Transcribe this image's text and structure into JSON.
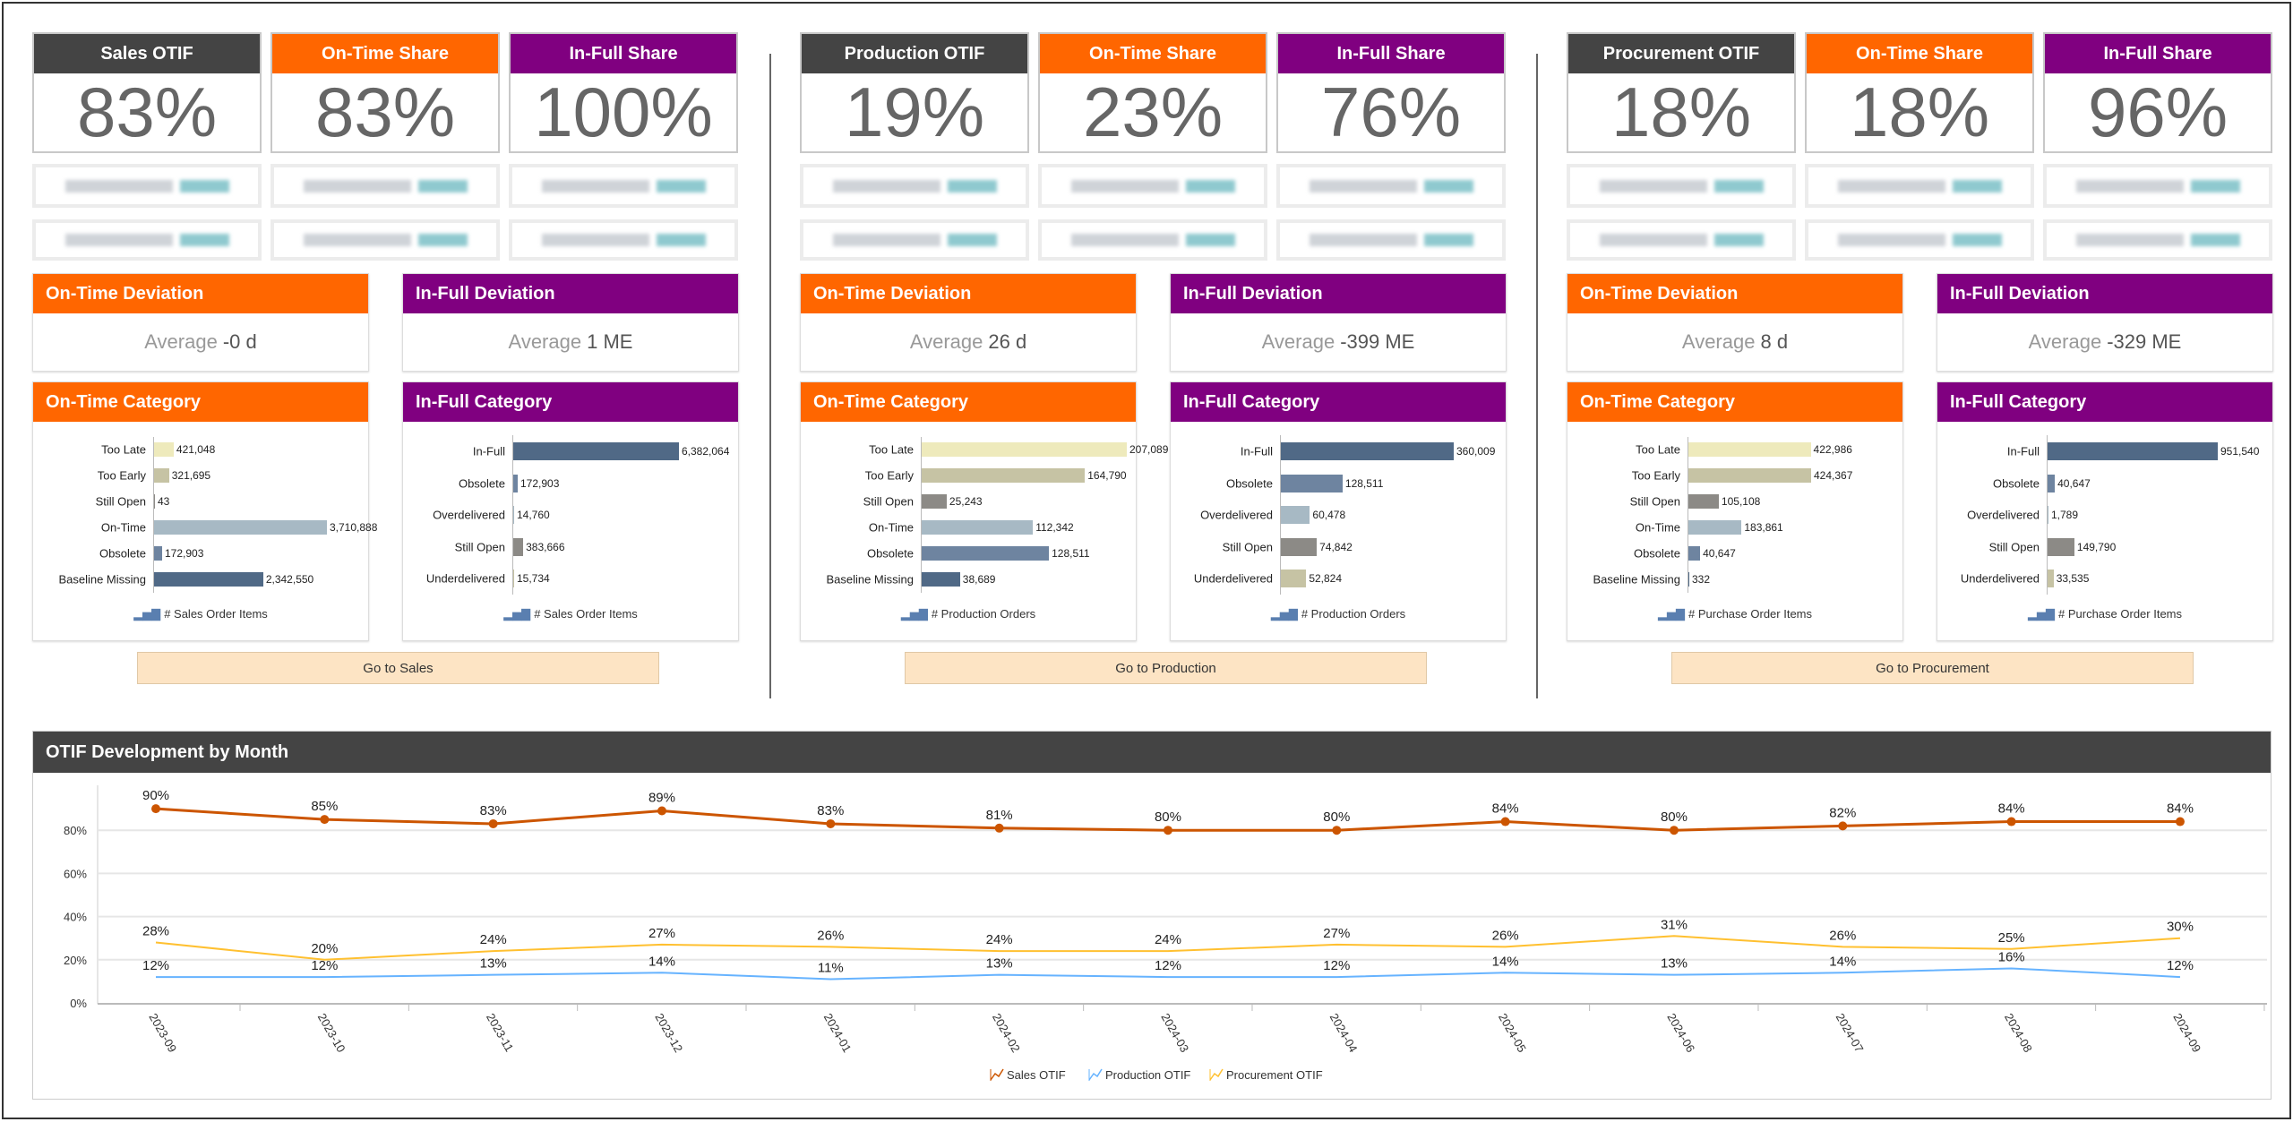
{
  "colors": {
    "dark": "#444444",
    "orange": "#ff6600",
    "purple": "#800080",
    "sales_line": "#cc5500",
    "production_line": "#66b3ff",
    "procurement_line": "#ffc030"
  },
  "sections": [
    {
      "kpis": [
        {
          "title": "Sales OTIF",
          "value": "83%",
          "color": "#444444"
        },
        {
          "title": "On-Time Share",
          "value": "83%",
          "color": "#ff6600"
        },
        {
          "title": "In-Full Share",
          "value": "100%",
          "color": "#800080"
        }
      ],
      "on_time_deviation": {
        "title": "On-Time Deviation",
        "label": "Average",
        "value": "-0 d"
      },
      "in_full_deviation": {
        "title": "In-Full Deviation",
        "label": "Average",
        "value": "1 ME"
      },
      "on_time_category": {
        "title": "On-Time Category",
        "legend": "# Sales Order Items",
        "categories": [
          "Too Late",
          "Too Early",
          "Still Open",
          "On-Time",
          "Obsolete",
          "Baseline Missing"
        ],
        "values": [
          421048,
          321695,
          43,
          3710888,
          172903,
          2342550
        ],
        "colors": [
          "#eeeabc",
          "#c6c3a4",
          "#8c8a86",
          "#a7b9c4",
          "#6e84a0",
          "#506986"
        ]
      },
      "in_full_category": {
        "title": "In-Full Category",
        "legend": "# Sales Order Items",
        "categories": [
          "In-Full",
          "Obsolete",
          "Overdelivered",
          "Still Open",
          "Underdelivered"
        ],
        "values": [
          6382064,
          172903,
          14760,
          383666,
          15734
        ],
        "colors": [
          "#506986",
          "#6e84a0",
          "#a7b9c4",
          "#8c8a86",
          "#c6c3a4"
        ]
      },
      "button": "Go to Sales"
    },
    {
      "kpis": [
        {
          "title": "Production OTIF",
          "value": "19%",
          "color": "#444444"
        },
        {
          "title": "On-Time Share",
          "value": "23%",
          "color": "#ff6600"
        },
        {
          "title": "In-Full Share",
          "value": "76%",
          "color": "#800080"
        }
      ],
      "on_time_deviation": {
        "title": "On-Time Deviation",
        "label": "Average",
        "value": "26 d"
      },
      "in_full_deviation": {
        "title": "In-Full Deviation",
        "label": "Average",
        "value": "-399 ME"
      },
      "on_time_category": {
        "title": "On-Time Category",
        "legend": "# Production Orders",
        "categories": [
          "Too Late",
          "Too Early",
          "Still Open",
          "On-Time",
          "Obsolete",
          "Baseline Missing"
        ],
        "values": [
          207089,
          164790,
          25243,
          112342,
          128511,
          38689
        ],
        "colors": [
          "#eeeabc",
          "#c6c3a4",
          "#8c8a86",
          "#a7b9c4",
          "#6e84a0",
          "#506986"
        ]
      },
      "in_full_category": {
        "title": "In-Full Category",
        "legend": "# Production Orders",
        "categories": [
          "In-Full",
          "Obsolete",
          "Overdelivered",
          "Still Open",
          "Underdelivered"
        ],
        "values": [
          360009,
          128511,
          60478,
          74842,
          52824
        ],
        "colors": [
          "#506986",
          "#6e84a0",
          "#a7b9c4",
          "#8c8a86",
          "#c6c3a4"
        ]
      },
      "button": "Go to Production"
    },
    {
      "kpis": [
        {
          "title": "Procurement OTIF",
          "value": "18%",
          "color": "#444444"
        },
        {
          "title": "On-Time Share",
          "value": "18%",
          "color": "#ff6600"
        },
        {
          "title": "In-Full Share",
          "value": "96%",
          "color": "#800080"
        }
      ],
      "on_time_deviation": {
        "title": "On-Time Deviation",
        "label": "Average",
        "value": "8 d"
      },
      "in_full_deviation": {
        "title": "In-Full Deviation",
        "label": "Average",
        "value": "-329 ME"
      },
      "on_time_category": {
        "title": "On-Time Category",
        "legend": "# Purchase Order Items",
        "categories": [
          "Too Late",
          "Too Early",
          "Still Open",
          "On-Time",
          "Obsolete",
          "Baseline Missing"
        ],
        "values": [
          422986,
          424367,
          105108,
          183861,
          40647,
          332
        ],
        "colors": [
          "#eeeabc",
          "#c6c3a4",
          "#8c8a86",
          "#a7b9c4",
          "#6e84a0",
          "#506986"
        ]
      },
      "in_full_category": {
        "title": "In-Full Category",
        "legend": "# Purchase Order Items",
        "categories": [
          "In-Full",
          "Obsolete",
          "Overdelivered",
          "Still Open",
          "Underdelivered"
        ],
        "values": [
          951540,
          40647,
          1789,
          149790,
          33535
        ],
        "colors": [
          "#506986",
          "#6e84a0",
          "#a7b9c4",
          "#8c8a86",
          "#c6c3a4"
        ]
      },
      "button": "Go to Procurement"
    }
  ],
  "trend": {
    "title": "OTIF Development by Month"
  },
  "chart_data": {
    "type": "line",
    "title": "OTIF Development by Month",
    "categories": [
      "2023-09",
      "2023-10",
      "2023-11",
      "2023-12",
      "2024-01",
      "2024-02",
      "2024-03",
      "2024-04",
      "2024-05",
      "2024-06",
      "2024-07",
      "2024-08",
      "2024-09"
    ],
    "series": [
      {
        "name": "Sales OTIF",
        "values": [
          90,
          85,
          83,
          89,
          83,
          81,
          80,
          80,
          84,
          80,
          82,
          84,
          84
        ],
        "color": "#cc5500",
        "markers": true
      },
      {
        "name": "Production OTIF",
        "values": [
          12,
          12,
          13,
          14,
          11,
          13,
          12,
          12,
          14,
          13,
          14,
          16,
          12
        ],
        "color": "#66b3ff",
        "markers": false
      },
      {
        "name": "Procurement OTIF",
        "values": [
          28,
          20,
          24,
          27,
          26,
          24,
          24,
          27,
          26,
          31,
          26,
          25,
          30
        ],
        "color": "#ffc030",
        "markers": false
      }
    ],
    "yticks": [
      "0%",
      "20%",
      "40%",
      "60%",
      "80%"
    ],
    "ylim": [
      0,
      100
    ],
    "grid": true,
    "legend": "bottom"
  }
}
